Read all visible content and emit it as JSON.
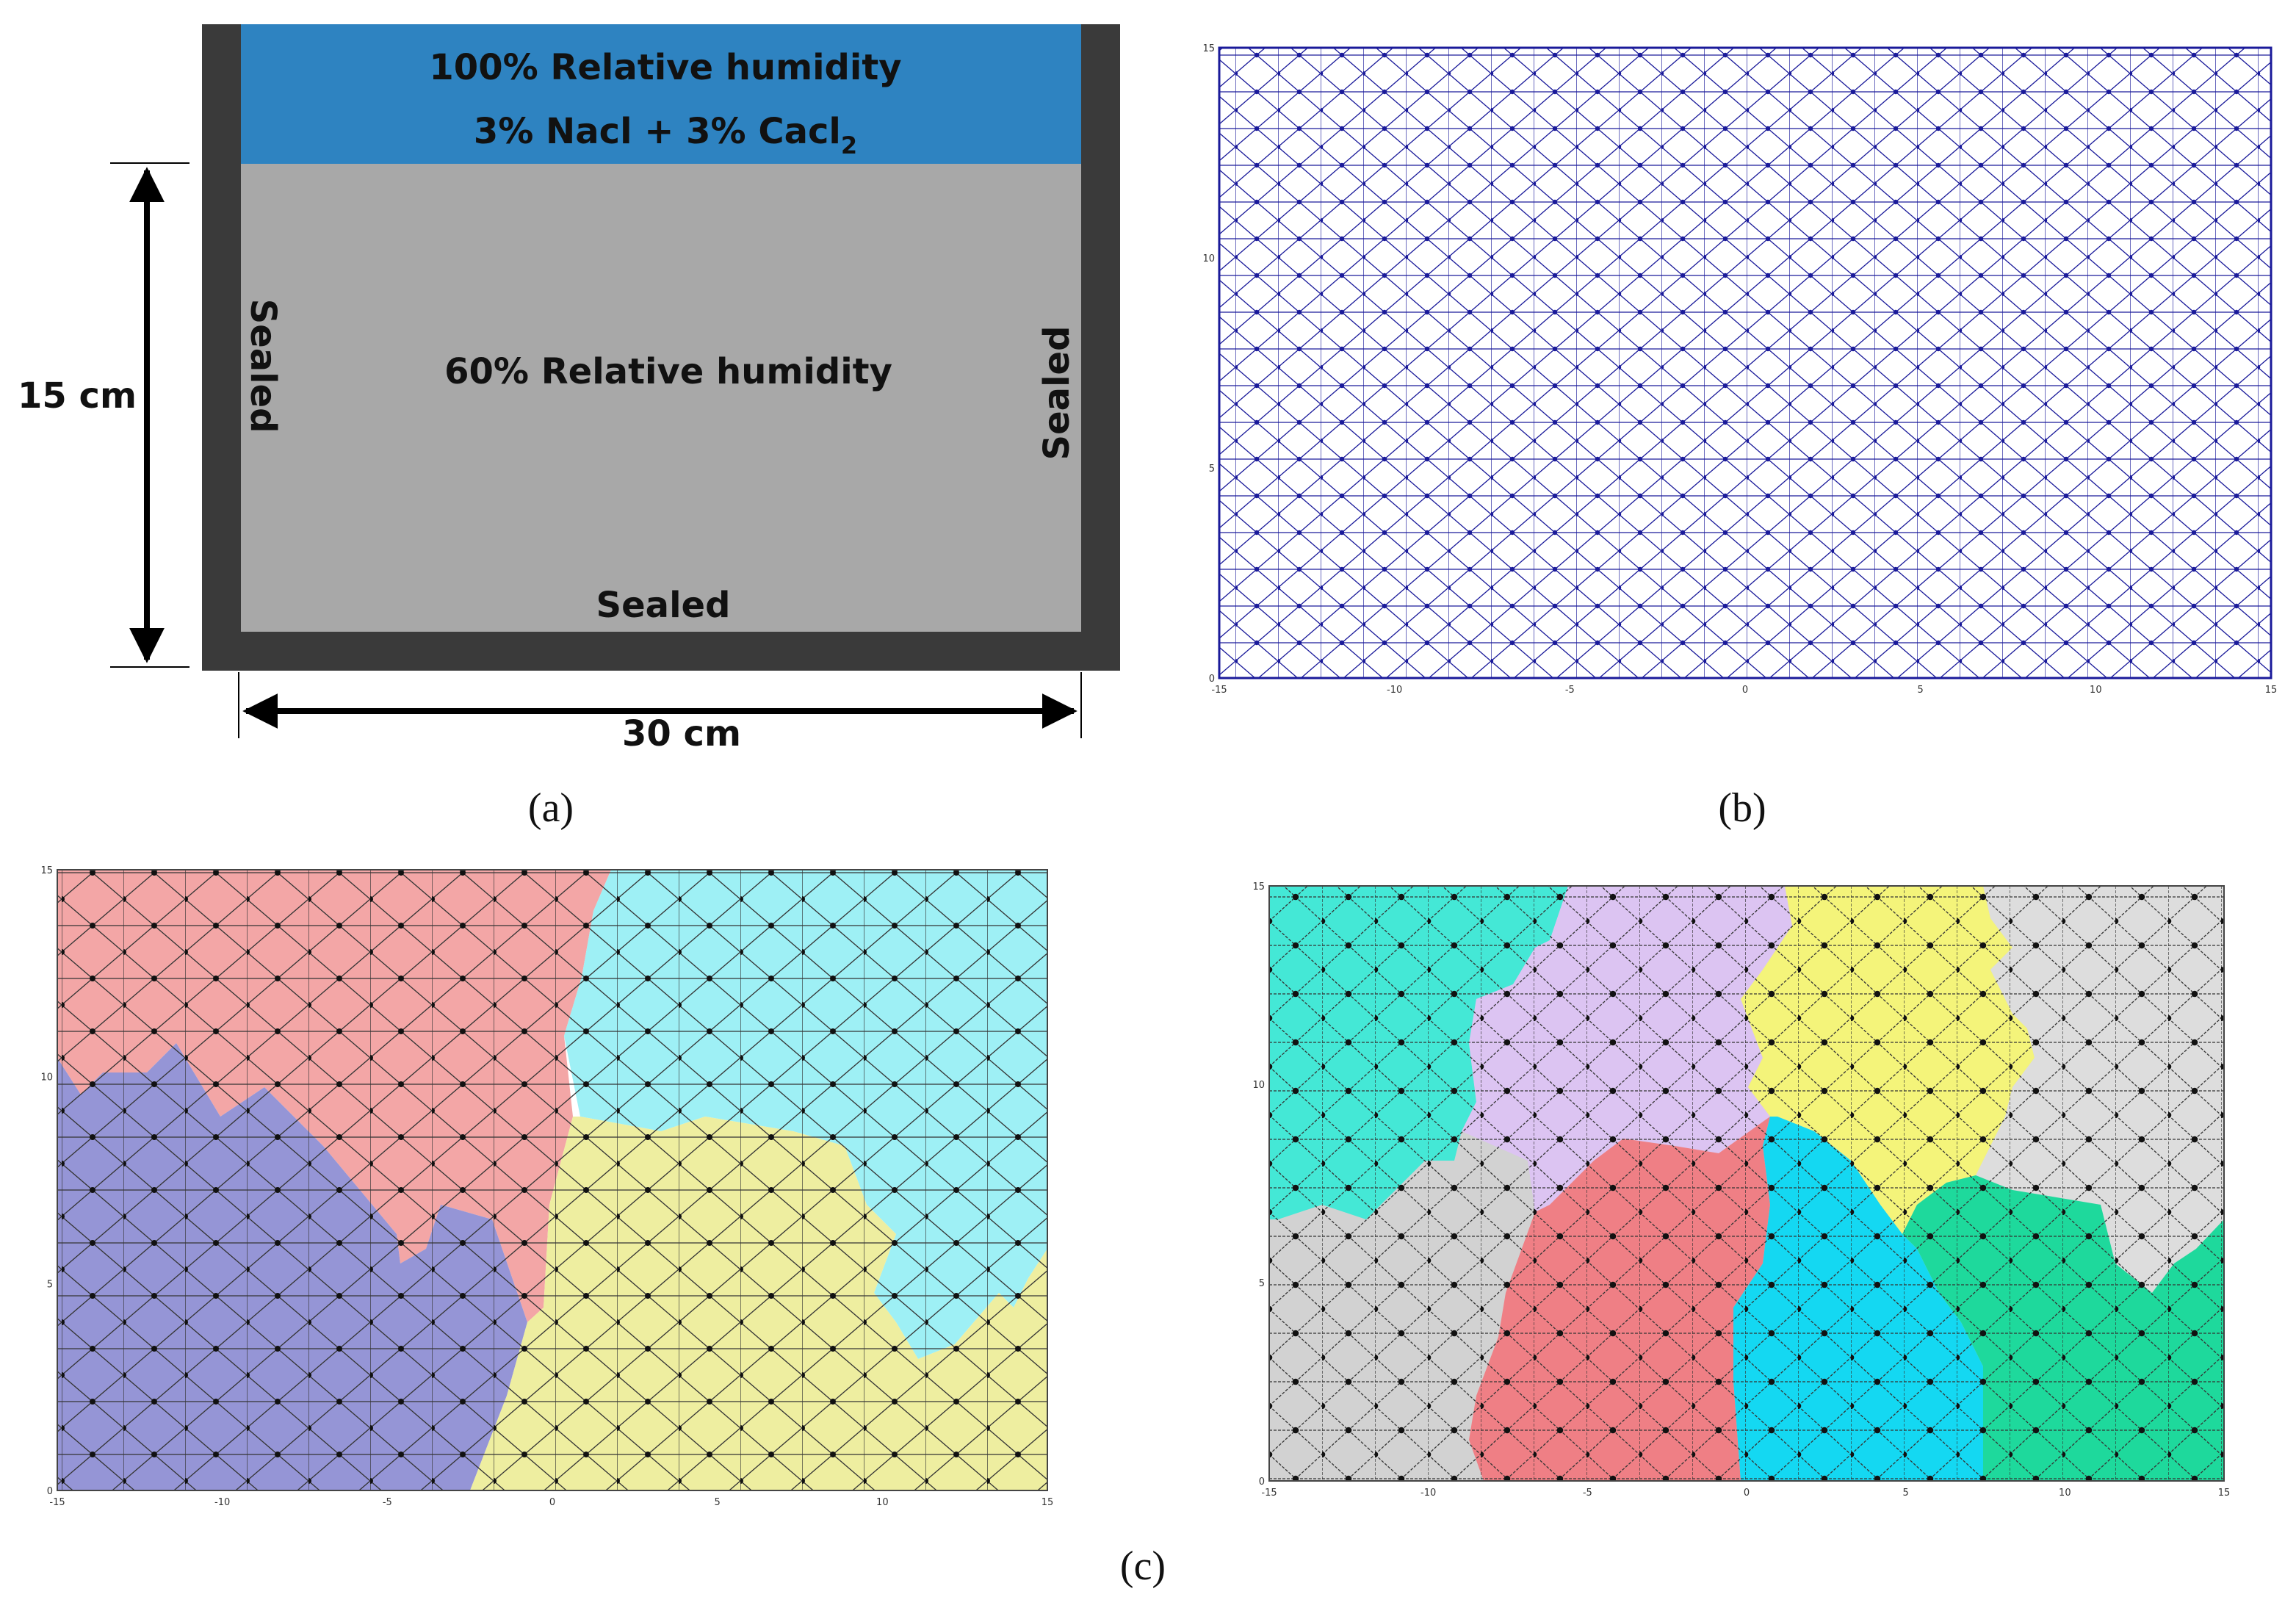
{
  "panel_a": {
    "top_line1": "100% Relative humidity",
    "top_line2_pre": "3% Nacl + 3% Cacl",
    "top_line2_sub": "2",
    "middle": "60% Relative humidity",
    "left_side": "Sealed",
    "right_side": "Sealed",
    "bottom": "Sealed",
    "height_dim": "15 cm",
    "width_dim": "30 cm",
    "caption": "(a)",
    "colors": {
      "frame": "#3a3a3a",
      "top_region": "#2e83c1",
      "specimen": "#a8a8a8"
    }
  },
  "panel_b": {
    "caption": "(b)",
    "x_ticks": [
      "-15",
      "-10",
      "-5",
      "0",
      "5",
      "10",
      "15"
    ],
    "y_ticks": [
      "15",
      "10",
      "5",
      "0"
    ],
    "colors": {
      "mesh": "#1a1a9a"
    }
  },
  "panel_c": {
    "caption": "(c)",
    "left": {
      "x_ticks": [
        "-15",
        "-10",
        "-5",
        "0",
        "5",
        "10",
        "15"
      ],
      "y_ticks": [
        "15",
        "10",
        "5",
        "0"
      ],
      "region_colors": [
        "#f3a6a6",
        "#9ef0f5",
        "#9595d6",
        "#eeeea0"
      ]
    },
    "right": {
      "x_ticks": [
        "-15",
        "-10",
        "-5",
        "0",
        "5",
        "10",
        "15"
      ],
      "y_ticks": [
        "15",
        "10",
        "5",
        "0"
      ],
      "region_colors": [
        "#44e8d6",
        "#dcc4f2",
        "#f4f47a",
        "#dddddd",
        "#d2d2d2",
        "#ef7f85",
        "#14d8f2",
        "#1ed99c"
      ]
    }
  }
}
